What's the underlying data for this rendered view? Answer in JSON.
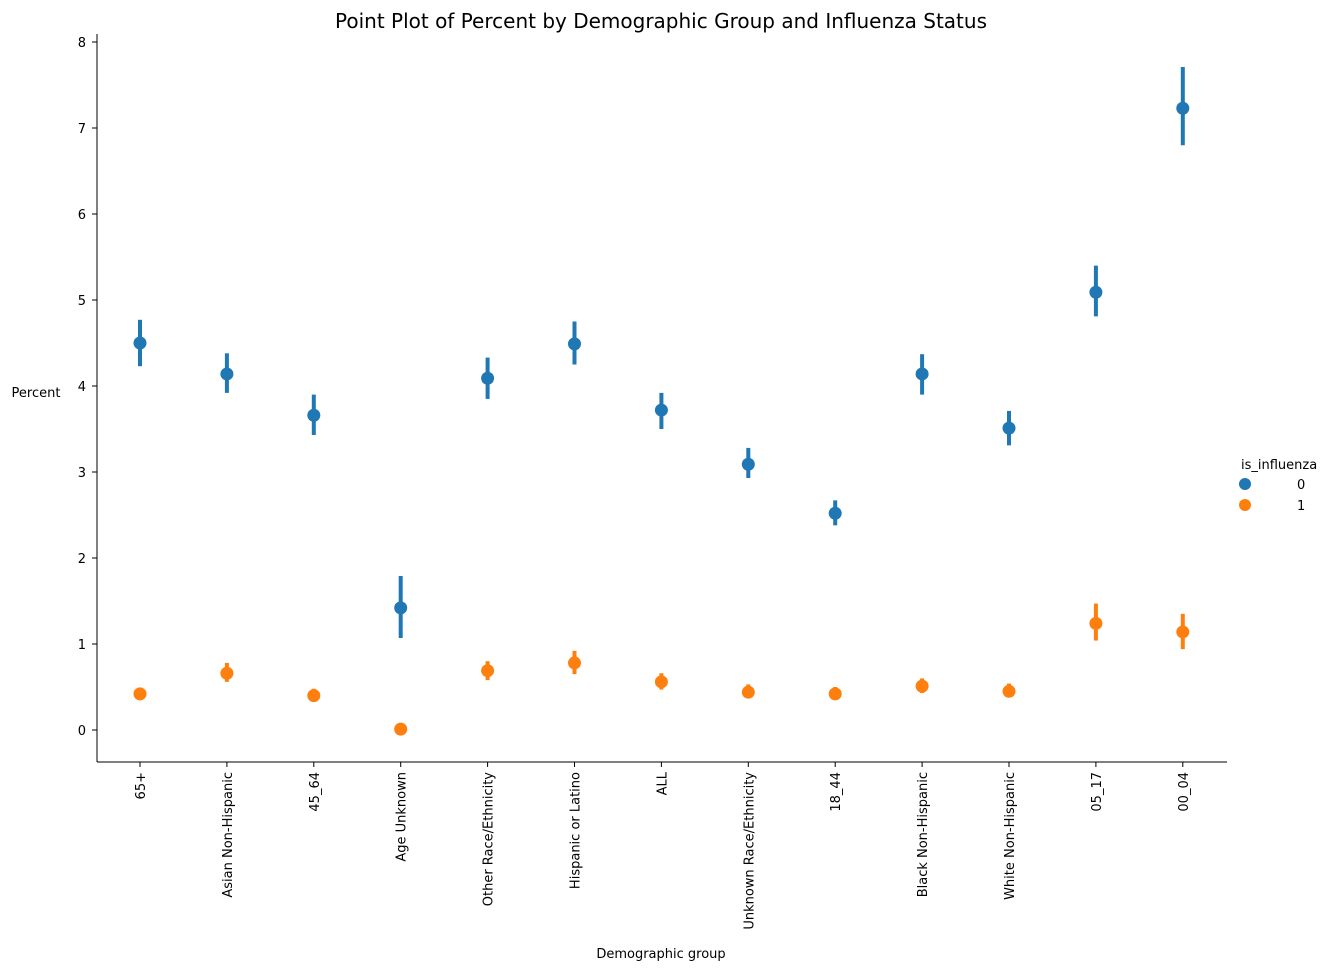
{
  "chart_data": {
    "type": "scatter",
    "title": "Point Plot of Percent by Demographic Group and Influenza Status",
    "xlabel": "Demographic group",
    "ylabel": "Percent",
    "ylim": [
      -0.37,
      8.07
    ],
    "yticks": [
      0,
      1,
      2,
      3,
      4,
      5,
      6,
      7,
      8
    ],
    "categories": [
      "65+",
      "Asian Non-Hispanic",
      "45_64",
      "Age Unknown",
      "Other Race/Ethnicity",
      "Hispanic or Latino",
      "ALL",
      "Unknown Race/Ethnicity",
      "18_44",
      "Black Non-Hispanic",
      "White Non-Hispanic",
      "05_17",
      "00_04"
    ],
    "legend": {
      "title": "is_influenza",
      "position": "center-right"
    },
    "series": [
      {
        "name": "0",
        "color": "#1f77b4",
        "values": [
          4.5,
          4.14,
          3.66,
          1.42,
          4.09,
          4.49,
          3.72,
          3.09,
          2.52,
          4.14,
          3.51,
          5.09,
          7.23
        ],
        "ci_low": [
          4.23,
          3.92,
          3.43,
          1.07,
          3.85,
          4.25,
          3.5,
          2.93,
          2.38,
          3.9,
          3.31,
          4.81,
          6.8
        ],
        "ci_high": [
          4.77,
          4.38,
          3.9,
          1.79,
          4.33,
          4.75,
          3.92,
          3.28,
          2.67,
          4.37,
          3.71,
          5.4,
          7.71
        ]
      },
      {
        "name": "1",
        "color": "#ff7f0e",
        "values": [
          0.42,
          0.66,
          0.4,
          0.01,
          0.69,
          0.78,
          0.56,
          0.44,
          0.42,
          0.51,
          0.45,
          1.24,
          1.14
        ],
        "ci_low": [
          0.37,
          0.56,
          0.34,
          0.0,
          0.58,
          0.65,
          0.47,
          0.38,
          0.36,
          0.43,
          0.39,
          1.04,
          0.94
        ],
        "ci_high": [
          0.48,
          0.78,
          0.48,
          0.02,
          0.8,
          0.92,
          0.66,
          0.53,
          0.5,
          0.6,
          0.54,
          1.47,
          1.35
        ]
      }
    ]
  }
}
